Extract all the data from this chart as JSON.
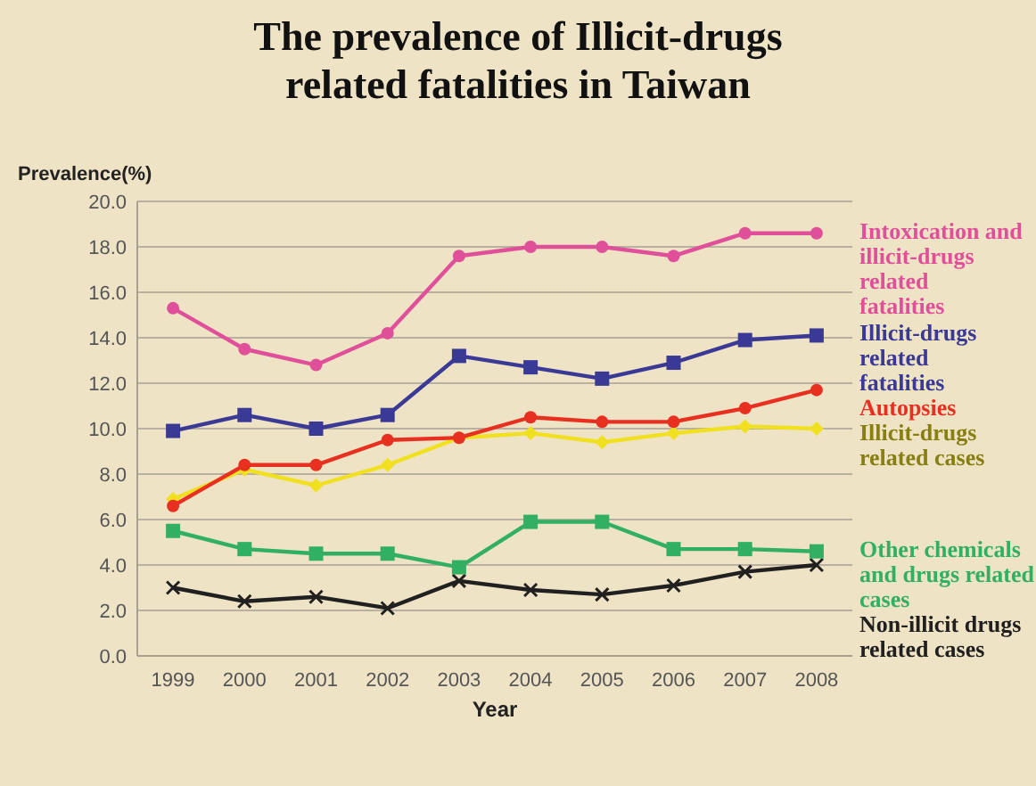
{
  "chart_data": {
    "type": "line",
    "title": "The prevalence of Illicit-drugs related fatalities in Taiwan",
    "ylabel": "Prevalence(%)",
    "xlabel": "Year",
    "categories": [
      "1999",
      "2000",
      "2001",
      "2002",
      "2003",
      "2004",
      "2005",
      "2006",
      "2007",
      "2008"
    ],
    "ylim": [
      0,
      20
    ],
    "yticks": [
      {
        "value": 0,
        "label": "0.0"
      },
      {
        "value": 2,
        "label": "2.0"
      },
      {
        "value": 4,
        "label": "4.0"
      },
      {
        "value": 6,
        "label": "6.0"
      },
      {
        "value": 8,
        "label": "8.0"
      },
      {
        "value": 10,
        "label": "10.0"
      },
      {
        "value": 12,
        "label": "12.0"
      },
      {
        "value": 14,
        "label": "14.0"
      },
      {
        "value": 16,
        "label": "16.0"
      },
      {
        "value": 18,
        "label": "18.0"
      },
      {
        "value": 20,
        "label": "20.0"
      }
    ],
    "grid": "y",
    "legend": "right",
    "series": [
      {
        "name": "Intoxication and illicit-drugs related fatalities",
        "color": "#e0509a",
        "marker": "circle",
        "values": [
          15.3,
          13.5,
          12.8,
          14.2,
          17.6,
          18.0,
          18.0,
          17.6,
          18.6,
          18.6
        ]
      },
      {
        "name": "Illicit-drugs related fatalities",
        "color": "#3a3a96",
        "marker": "square",
        "values": [
          9.9,
          10.6,
          10.0,
          10.6,
          13.2,
          12.7,
          12.2,
          12.9,
          13.9,
          14.1
        ]
      },
      {
        "name": "Autopsies",
        "color": "#e83020",
        "marker": "circle",
        "values": [
          6.6,
          8.4,
          8.4,
          9.5,
          9.6,
          10.5,
          10.3,
          10.3,
          10.9,
          11.7
        ]
      },
      {
        "name": "Illicit-drugs related  cases",
        "color": "#f0e020",
        "marker": "diamond",
        "values": [
          6.9,
          8.2,
          7.5,
          8.4,
          9.6,
          9.8,
          9.4,
          9.8,
          10.1,
          10.0
        ]
      },
      {
        "name": "Other chemicals and drugs related cases",
        "color": "#30b060",
        "marker": "square",
        "values": [
          5.5,
          4.7,
          4.5,
          4.5,
          3.9,
          5.9,
          5.9,
          4.7,
          4.7,
          4.6
        ]
      },
      {
        "name": "Non-illicit drugs related cases",
        "color": "#202020",
        "marker": "cross",
        "values": [
          3.0,
          2.4,
          2.6,
          2.1,
          3.3,
          2.9,
          2.7,
          3.1,
          3.7,
          4.0
        ]
      }
    ]
  }
}
